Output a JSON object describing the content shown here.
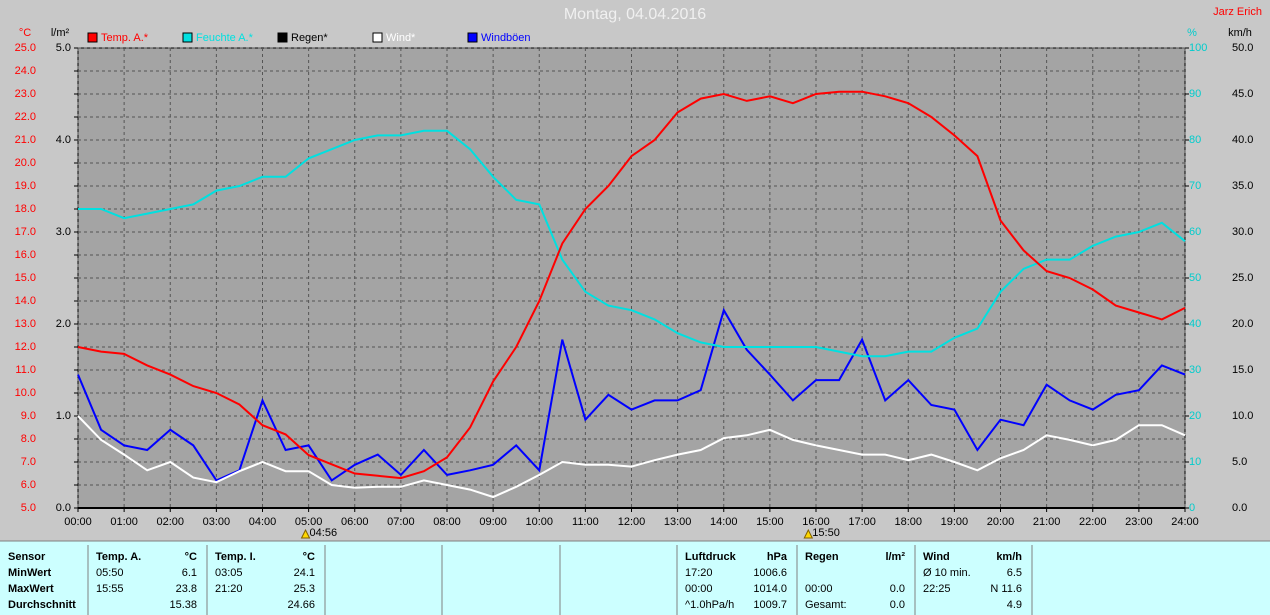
{
  "chart_data": {
    "type": "line",
    "title": "Montag, 04.04.2016",
    "author": "Jarz Erich",
    "x": [
      0,
      0.5,
      1,
      1.5,
      2,
      2.5,
      3,
      3.5,
      4,
      4.5,
      5,
      5.5,
      6,
      6.5,
      7,
      7.5,
      8,
      8.5,
      9,
      9.5,
      10,
      10.5,
      11,
      11.5,
      12,
      12.5,
      13,
      13.5,
      14,
      14.5,
      15,
      15.5,
      16,
      16.5,
      17,
      17.5,
      18,
      18.5,
      19,
      19.5,
      20,
      20.5,
      21,
      21.5,
      22,
      22.5,
      23,
      23.5,
      24
    ],
    "xlim": [
      0,
      24
    ],
    "xticks": [
      {
        "value": 0,
        "label": "00:00"
      },
      {
        "value": 1,
        "label": "01:00"
      },
      {
        "value": 2,
        "label": "02:00"
      },
      {
        "value": 3,
        "label": "03:00"
      },
      {
        "value": 4,
        "label": "04:00"
      },
      {
        "value": 5,
        "label": "05:00"
      },
      {
        "value": 6,
        "label": "06:00"
      },
      {
        "value": 7,
        "label": "07:00"
      },
      {
        "value": 8,
        "label": "08:00"
      },
      {
        "value": 9,
        "label": "09:00"
      },
      {
        "value": 10,
        "label": "10:00"
      },
      {
        "value": 11,
        "label": "11:00"
      },
      {
        "value": 12,
        "label": "12:00"
      },
      {
        "value": 13,
        "label": "13:00"
      },
      {
        "value": 14,
        "label": "14:00"
      },
      {
        "value": 15,
        "label": "15:00"
      },
      {
        "value": 16,
        "label": "16:00"
      },
      {
        "value": 17,
        "label": "17:00"
      },
      {
        "value": 18,
        "label": "18:00"
      },
      {
        "value": 19,
        "label": "19:00"
      },
      {
        "value": 20,
        "label": "20:00"
      },
      {
        "value": 21,
        "label": "21:00"
      },
      {
        "value": 22,
        "label": "22:00"
      },
      {
        "value": 23,
        "label": "23:00"
      },
      {
        "value": 24,
        "label": "24:00"
      }
    ],
    "grid": true,
    "axes": [
      {
        "unit": "°C",
        "side": "left",
        "color": "#ff0000",
        "lim": [
          5,
          25
        ],
        "ticks": [
          {
            "value": 5,
            "label": "5.0"
          },
          {
            "value": 6,
            "label": "6.0"
          },
          {
            "value": 7,
            "label": "7.0"
          },
          {
            "value": 8,
            "label": "8.0"
          },
          {
            "value": 9,
            "label": "9.0"
          },
          {
            "value": 10,
            "label": "10.0"
          },
          {
            "value": 11,
            "label": "11.0"
          },
          {
            "value": 12,
            "label": "12.0"
          },
          {
            "value": 13,
            "label": "13.0"
          },
          {
            "value": 14,
            "label": "14.0"
          },
          {
            "value": 15,
            "label": "15.0"
          },
          {
            "value": 16,
            "label": "16.0"
          },
          {
            "value": 17,
            "label": "17.0"
          },
          {
            "value": 18,
            "label": "18.0"
          },
          {
            "value": 19,
            "label": "19.0"
          },
          {
            "value": 20,
            "label": "20.0"
          },
          {
            "value": 21,
            "label": "21.0"
          },
          {
            "value": 22,
            "label": "22.0"
          },
          {
            "value": 23,
            "label": "23.0"
          },
          {
            "value": 24,
            "label": "24.0"
          },
          {
            "value": 25,
            "label": "25.0"
          }
        ]
      },
      {
        "unit": "l/m²",
        "side": "left",
        "color": "#000000",
        "lim": [
          0,
          5
        ],
        "ticks": [
          {
            "value": 0,
            "label": "0.0"
          },
          {
            "value": 1,
            "label": "1.0"
          },
          {
            "value": 2,
            "label": "2.0"
          },
          {
            "value": 3,
            "label": "3.0"
          },
          {
            "value": 4,
            "label": "4.0"
          },
          {
            "value": 5,
            "label": "5.0"
          }
        ]
      },
      {
        "unit": "%",
        "side": "right",
        "color": "#00cccc",
        "lim": [
          0,
          100
        ],
        "ticks": [
          0,
          10,
          20,
          30,
          40,
          50,
          60,
          70,
          80,
          90,
          100
        ]
      },
      {
        "unit": "km/h",
        "side": "right",
        "color": "#000000",
        "lim": [
          0,
          50
        ],
        "ticks": [
          {
            "value": 0,
            "label": "0.0"
          },
          {
            "value": 5,
            "label": "5.0"
          },
          {
            "value": 10,
            "label": "10.0"
          },
          {
            "value": 15,
            "label": "15.0"
          },
          {
            "value": 20,
            "label": "20.0"
          },
          {
            "value": 25,
            "label": "25.0"
          },
          {
            "value": 30,
            "label": "30.0"
          },
          {
            "value": 35,
            "label": "35.0"
          },
          {
            "value": 40,
            "label": "40.0"
          },
          {
            "value": 45,
            "label": "45.0"
          },
          {
            "value": 50,
            "label": "50.0"
          }
        ]
      }
    ],
    "series": [
      {
        "name": "Temp. A.*",
        "color": "#ff0000",
        "axis": 0,
        "values": [
          12.0,
          11.8,
          11.7,
          11.2,
          10.8,
          10.3,
          10.0,
          9.5,
          8.6,
          8.2,
          7.3,
          6.9,
          6.5,
          6.4,
          6.3,
          6.6,
          7.2,
          8.5,
          10.5,
          12.0,
          14.0,
          16.5,
          18.0,
          19.0,
          20.3,
          21.0,
          22.2,
          22.8,
          23.0,
          22.7,
          22.9,
          22.6,
          23.0,
          23.1,
          23.1,
          22.9,
          22.6,
          22.0,
          21.2,
          20.3,
          17.5,
          16.2,
          15.3,
          15.0,
          14.5,
          13.8,
          13.5,
          13.2,
          13.7
        ]
      },
      {
        "name": "Feuchte A.*",
        "color": "#00e0e0",
        "axis": 2,
        "values": [
          65,
          65,
          63,
          64,
          65,
          66,
          69,
          70,
          72,
          72,
          76,
          78,
          80,
          81,
          81,
          82,
          82,
          78,
          72,
          67,
          66,
          54,
          47,
          44,
          43,
          41,
          38,
          36,
          35,
          35,
          35,
          35,
          35,
          34,
          33,
          33,
          34,
          34,
          37,
          39,
          47,
          52,
          54,
          54,
          57,
          59,
          60,
          62,
          58
        ]
      },
      {
        "name": "Regen*",
        "color": "#000000",
        "axis": 1,
        "values": [
          0,
          0,
          0,
          0,
          0,
          0,
          0,
          0,
          0,
          0,
          0,
          0,
          0,
          0,
          0,
          0,
          0,
          0,
          0,
          0,
          0,
          0,
          0,
          0,
          0,
          0,
          0,
          0,
          0,
          0,
          0,
          0,
          0,
          0,
          0,
          0,
          0,
          0,
          0,
          0,
          0,
          0,
          0,
          0,
          0,
          0,
          0,
          0,
          0
        ]
      },
      {
        "name": "Wind*",
        "color": "#ffffff",
        "axis": 3,
        "values": [
          10,
          7.4,
          5.8,
          4.1,
          5,
          3.3,
          2.8,
          4,
          5,
          4,
          4,
          2.5,
          2.2,
          2.3,
          2.3,
          3,
          2.5,
          2,
          1.2,
          2.3,
          3.6,
          5,
          4.7,
          4.7,
          4.5,
          5.2,
          5.8,
          6.3,
          7.6,
          7.9,
          8.5,
          7.4,
          6.8,
          6.3,
          5.8,
          5.8,
          5.2,
          5.8,
          5,
          4.1,
          5.4,
          6.3,
          7.9,
          7.4,
          6.8,
          7.4,
          9,
          9,
          7.9
        ]
      },
      {
        "name": "Windböen",
        "color": "#0000ff",
        "axis": 3,
        "values": [
          14.5,
          8.5,
          6.8,
          6.3,
          8.5,
          6.8,
          3,
          4.1,
          11.7,
          6.3,
          6.8,
          3,
          4.7,
          5.8,
          3.6,
          6.3,
          3.6,
          4.1,
          4.7,
          6.8,
          4.1,
          18.3,
          9.6,
          12.3,
          10.7,
          11.7,
          11.7,
          12.8,
          21.5,
          17.2,
          14.5,
          11.7,
          13.9,
          13.9,
          18.3,
          11.7,
          13.9,
          11.2,
          10.7,
          6.3,
          9.6,
          9,
          13.4,
          11.7,
          10.7,
          12.3,
          12.8,
          15.5,
          14.5
        ]
      }
    ],
    "annotations": [
      {
        "x": 4.933,
        "label": "04:56"
      },
      {
        "x": 15.833,
        "label": "15:50"
      }
    ]
  },
  "table": {
    "columns": [
      {
        "header": [
          "Sensor"
        ],
        "rows": [
          [
            "MinWert"
          ],
          [
            "MaxWert"
          ],
          [
            "Durchschnitt"
          ]
        ]
      },
      {
        "header": [
          "Temp. A.",
          "°C"
        ],
        "rows": [
          [
            "05:50",
            "6.1"
          ],
          [
            "15:55",
            "23.8"
          ],
          [
            null,
            "15.38"
          ]
        ]
      },
      {
        "header": [
          "Temp. I.",
          "°C"
        ],
        "rows": [
          [
            "03:05",
            "24.1"
          ],
          [
            "21:20",
            "25.3"
          ],
          [
            null,
            "24.66"
          ]
        ]
      },
      {
        "header": [
          "Luftdruck",
          "hPa"
        ],
        "rows": [
          [
            "17:20",
            "1006.6"
          ],
          [
            "00:00",
            "1014.0"
          ],
          [
            "^1.0hPa/h",
            "1009.7"
          ]
        ]
      },
      {
        "header": [
          "Regen",
          "l/m²"
        ],
        "rows": [
          [
            null,
            null
          ],
          [
            "00:00",
            "0.0"
          ],
          [
            "Gesamt:",
            "0.0"
          ]
        ]
      },
      {
        "header": [
          "Wind",
          "km/h"
        ],
        "rows": [
          [
            "Ø 10 min.",
            "6.5"
          ],
          [
            "22:25",
            "N 11.6"
          ],
          [
            null,
            "4.9"
          ]
        ]
      }
    ]
  }
}
